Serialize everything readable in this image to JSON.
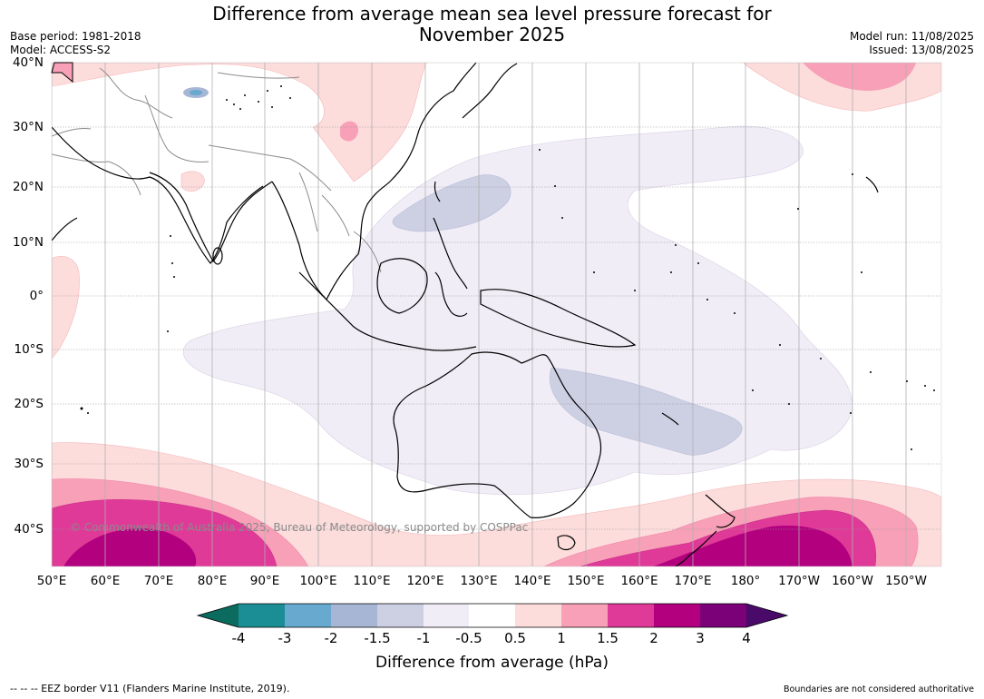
{
  "header": {
    "title_line1": "Difference from average mean sea level pressure forecast for",
    "title_line2": "November 2025",
    "base_period": "Base period: 1981-2018",
    "model": "Model: ACCESS-S2",
    "model_run": "Model run: 11/08/2025",
    "issued": "Issued: 13/08/2025"
  },
  "map": {
    "latitude_labels": [
      "40°N",
      "30°N",
      "20°N",
      "10°N",
      "0°",
      "10°S",
      "20°S",
      "30°S",
      "40°S"
    ],
    "longitude_labels": [
      "50°E",
      "60°E",
      "70°E",
      "80°E",
      "90°E",
      "100°E",
      "110°E",
      "120°E",
      "130°E",
      "140°E",
      "150°E",
      "160°E",
      "170°E",
      "180°",
      "170°W",
      "160°W",
      "150°W"
    ],
    "copyright": "© Commonwealth of Australia 2025, Bureau of Meteorology, supported by COSPPac",
    "gridlines": true
  },
  "colorbar": {
    "label": "Difference from average (hPa)",
    "ticks": [
      "-4",
      "-3",
      "-2",
      "-1.5",
      "-1",
      "-0.5",
      "0.5",
      "1",
      "1.5",
      "2",
      "3",
      "4"
    ],
    "below_color": "#0b6b5e",
    "above_color": "#4a0a6a",
    "colors": [
      "#1b8e95",
      "#67a9cf",
      "#a7b6d4",
      "#cdcfe3",
      "#f1edf6",
      "#ffffff",
      "#fddcdc",
      "#f7a0b8",
      "#df3a98",
      "#b2007e",
      "#7a0177"
    ]
  },
  "footer": {
    "eez_note": "--  --  -- EEZ border V11 (Flanders Marine Institute, 2019).",
    "disclaimer": "Boundaries are not considered authoritative"
  }
}
